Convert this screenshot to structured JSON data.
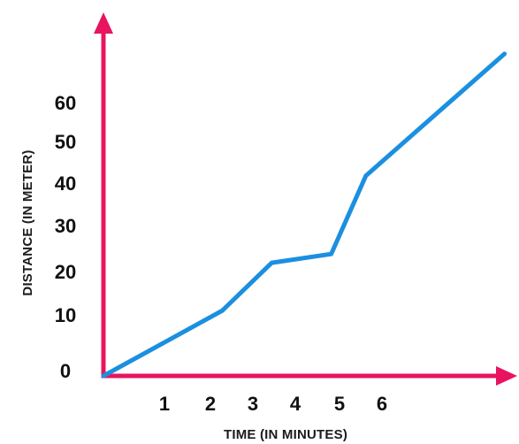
{
  "chart_data": {
    "type": "line",
    "xlabel": "TIME (IN MINUTES)",
    "ylabel": "DISTANCE (IN METER)",
    "x_ticks": [
      "1",
      "2",
      "3",
      "4",
      "5",
      "6"
    ],
    "y_ticks": [
      "0",
      "10",
      "20",
      "30",
      "40",
      "50",
      "60"
    ],
    "xlim": [
      0,
      8.2
    ],
    "ylim": [
      0,
      74
    ],
    "series": [
      {
        "values": [
          {
            "x": 0,
            "y": 0
          },
          {
            "x": 2.4,
            "y": 15
          },
          {
            "x": 3.4,
            "y": 26
          },
          {
            "x": 4.6,
            "y": 28
          },
          {
            "x": 5.3,
            "y": 46
          },
          {
            "x": 6.5,
            "y": 58
          },
          {
            "x": 8.1,
            "y": 74
          }
        ]
      }
    ],
    "colors": {
      "axis": "#e8145f",
      "line": "#1b8fe0",
      "text": "#111111"
    },
    "grid": false
  }
}
